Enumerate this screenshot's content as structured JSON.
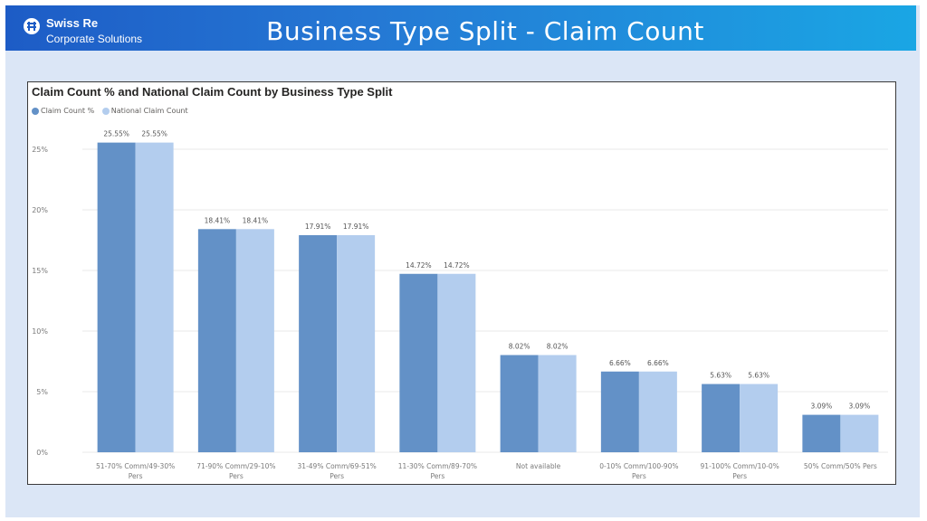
{
  "header": {
    "logo_name": "Swiss Re",
    "logo_sub": "Corporate Solutions",
    "title": "Business Type Split - Claim Count"
  },
  "colors": {
    "claim_count_pct": "#6391c7",
    "national_claim_count": "#b3cdee",
    "grid": "#e8e8e8",
    "axis_text": "#7a7a7a"
  },
  "chart_data": {
    "type": "bar",
    "title": "Claim Count % and National Claim Count by Business Type Split",
    "legend_position": "top-left",
    "grid": true,
    "ylim": [
      0,
      25
    ],
    "yticks": [
      "0%",
      "5%",
      "10%",
      "15%",
      "20%",
      "25%"
    ],
    "categories": [
      [
        "51-70% Comm/49-30%",
        "Pers"
      ],
      [
        "71-90% Comm/29-10%",
        "Pers"
      ],
      [
        "31-49% Comm/69-51%",
        "Pers"
      ],
      [
        "11-30% Comm/89-70%",
        "Pers"
      ],
      [
        "Not available"
      ],
      [
        "0-10% Comm/100-90%",
        "Pers"
      ],
      [
        "91-100% Comm/10-0%",
        "Pers"
      ],
      [
        "50% Comm/50% Pers"
      ]
    ],
    "series": [
      {
        "name": "Claim Count %",
        "values": [
          25.55,
          18.41,
          17.91,
          14.72,
          8.02,
          6.66,
          5.63,
          3.09
        ],
        "labels": [
          "25.55%",
          "18.41%",
          "17.91%",
          "14.72%",
          "8.02%",
          "6.66%",
          "5.63%",
          "3.09%"
        ]
      },
      {
        "name": "National Claim Count",
        "values": [
          25.55,
          18.41,
          17.91,
          14.72,
          8.02,
          6.66,
          5.63,
          3.09
        ],
        "labels": [
          "25.55%",
          "18.41%",
          "17.91%",
          "14.72%",
          "8.02%",
          "6.66%",
          "5.63%",
          "3.09%"
        ]
      }
    ]
  }
}
